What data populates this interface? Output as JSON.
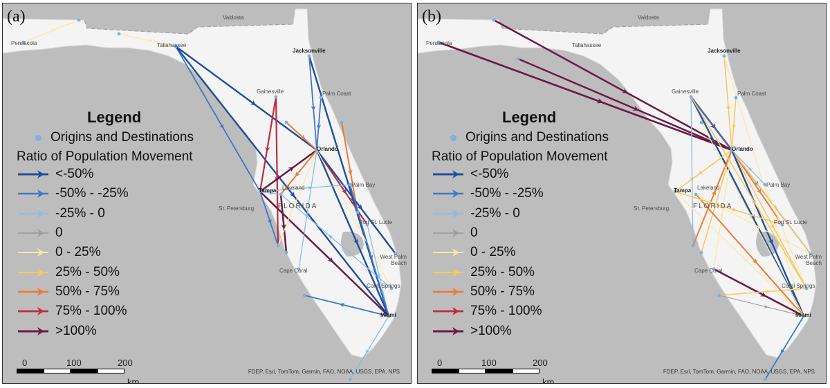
{
  "panels": [
    {
      "label": "(a)",
      "flows": [
        {
          "from": "Pensacola",
          "to": "ne_pan",
          "cls": 5
        },
        {
          "from": "west_pan",
          "to": "Tallahassee",
          "cls": 5
        },
        {
          "from": "Tallahassee",
          "to": "Orlando",
          "cls": 1
        },
        {
          "from": "Tallahassee",
          "to": "Tampa",
          "cls": 2
        },
        {
          "from": "Tallahassee",
          "to": "Miami",
          "cls": 1
        },
        {
          "from": "Jacksonville",
          "to": "Miami",
          "cls": 1
        },
        {
          "from": "Jacksonville",
          "to": "Orlando",
          "cls": 2
        },
        {
          "from": "Palm Coast",
          "to": "Orlando",
          "cls": 2
        },
        {
          "from": "east_coast",
          "to": "Fort Pierce",
          "cls": 7
        },
        {
          "from": "Gainesville",
          "to": "Sarasota",
          "cls": 8
        },
        {
          "from": "Gainesville",
          "to": "Tampa",
          "cls": 8
        },
        {
          "from": "Tampa",
          "to": "Orlando",
          "cls": 9
        },
        {
          "from": "Tampa",
          "to": "Miami",
          "cls": 9
        },
        {
          "from": "Lakeland",
          "to": "Fort Myers",
          "cls": 9
        },
        {
          "from": "Orlando",
          "to": "Port St Lucie",
          "cls": 8
        },
        {
          "from": "Orlando",
          "to": "Miami",
          "cls": 1
        },
        {
          "from": "Orlando",
          "to": "West Palm",
          "cls": 1
        },
        {
          "from": "Orlando",
          "to": "Cape Coral",
          "cls": 3
        },
        {
          "from": "Orlando",
          "to": "Sarasota",
          "cls": 5
        },
        {
          "from": "Orlando",
          "to": "Coral Springs",
          "cls": 5
        },
        {
          "from": "Tampa",
          "to": "Sarasota",
          "cls": 2
        },
        {
          "from": "Tampa",
          "to": "Lakeland",
          "cls": 3
        },
        {
          "from": "Miami",
          "to": "Key West",
          "cls": 3
        },
        {
          "from": "Miami",
          "to": "Naples",
          "cls": 2
        },
        {
          "from": "Ocala",
          "to": "Orlando",
          "cls": 7
        },
        {
          "from": "Tampa",
          "to": "Palm Bay",
          "cls": 3
        },
        {
          "from": "Coral Springs",
          "to": "Lakeland",
          "cls": 3
        },
        {
          "from": "Orlando",
          "to": "Lakeland",
          "cls": 7
        },
        {
          "from": "Port St Lucie",
          "to": "Miami",
          "cls": 3
        },
        {
          "from": "Palm Bay",
          "to": "Miami",
          "cls": 2
        }
      ]
    },
    {
      "label": "(b)",
      "flows": [
        {
          "from": "ne_pan",
          "to": "Orlando",
          "cls": 9
        },
        {
          "from": "Pensacola",
          "to": "Orlando",
          "cls": 9
        },
        {
          "from": "Pensacola",
          "to": "Orlando",
          "cls": 9
        },
        {
          "from": "pan_mid",
          "to": "Orlando",
          "cls": 9
        },
        {
          "from": "Gainesville",
          "to": "Orlando",
          "cls": 9
        },
        {
          "from": "Gainesville",
          "to": "Miami",
          "cls": 1
        },
        {
          "from": "Gainesville",
          "to": "West Palm",
          "cls": 2
        },
        {
          "from": "Gainesville",
          "to": "Sarasota",
          "cls": 3
        },
        {
          "from": "Jacksonville",
          "to": "Orlando",
          "cls": 6
        },
        {
          "from": "Jacksonville",
          "to": "Miami",
          "cls": 5
        },
        {
          "from": "Palm Coast",
          "to": "Orlando",
          "cls": 6
        },
        {
          "from": "Orlando",
          "to": "Tampa",
          "cls": 6
        },
        {
          "from": "Orlando",
          "to": "Sarasota",
          "cls": 6
        },
        {
          "from": "Orlando",
          "to": "Fort Myers",
          "cls": 6
        },
        {
          "from": "Orlando",
          "to": "Cape Coral",
          "cls": 5
        },
        {
          "from": "Orlando",
          "to": "Port St Lucie",
          "cls": 7
        },
        {
          "from": "Orlando",
          "to": "West Palm",
          "cls": 6
        },
        {
          "from": "Orlando",
          "to": "Coral Springs",
          "cls": 6
        },
        {
          "from": "Orlando",
          "to": "Miami",
          "cls": 1
        },
        {
          "from": "Orlando",
          "to": "Palm Bay",
          "cls": 3
        },
        {
          "from": "Cape Coral",
          "to": "Miami",
          "cls": 9
        },
        {
          "from": "Naples",
          "to": "Miami",
          "cls": 4
        },
        {
          "from": "Naples",
          "to": "Coral Springs",
          "cls": 6
        },
        {
          "from": "Miami",
          "to": "Key West",
          "cls": 2
        },
        {
          "from": "Lakeland",
          "to": "Miami",
          "cls": 7
        },
        {
          "from": "Tampa",
          "to": "Port St Lucie",
          "cls": 6
        },
        {
          "from": "Tampa",
          "to": "Miami",
          "cls": 5
        },
        {
          "from": "Sarasota",
          "to": "Orlando",
          "cls": 7
        },
        {
          "from": "Ocala",
          "to": "Miami",
          "cls": 5
        },
        {
          "from": "Gainesville",
          "to": "Coral Springs",
          "cls": 6
        },
        {
          "from": "Palm Bay",
          "to": "Coral Springs",
          "cls": 5
        },
        {
          "from": "Lakeland",
          "to": "West Palm",
          "cls": 5
        }
      ]
    }
  ],
  "cities": [
    {
      "name": "Pensacola",
      "key": "Pensacola",
      "bold": false
    },
    {
      "name": "Tallahassee",
      "key": "Tallahassee",
      "bold": false
    },
    {
      "name": "Valdosta",
      "key": "Valdosta",
      "bold": false
    },
    {
      "name": "Jacksonville",
      "key": "Jacksonville",
      "bold": true
    },
    {
      "name": "Gainesville",
      "key": "Gainesville",
      "bold": false
    },
    {
      "name": "Palm Coast",
      "key": "Palm Coast",
      "bold": false
    },
    {
      "name": "Orlando",
      "key": "Orlando",
      "bold": true
    },
    {
      "name": "Tampa",
      "key": "Tampa",
      "bold": true
    },
    {
      "name": "Lakeland",
      "key": "Lakeland",
      "bold": false
    },
    {
      "name": "St. Petersburg",
      "key": "St Petersburg",
      "bold": false
    },
    {
      "name": "FLORIDA",
      "key": "FLORIDA",
      "bold": false
    },
    {
      "name": "Palm Bay",
      "key": "Palm Bay",
      "bold": false
    },
    {
      "name": "Port St. Lucie",
      "key": "Port St Lucie",
      "bold": false
    },
    {
      "name": "West Palm Beach",
      "key": "West Palm",
      "bold": false
    },
    {
      "name": "Cape Coral",
      "key": "Cape Coral",
      "bold": false
    },
    {
      "name": "Coral Springs",
      "key": "Coral Springs",
      "bold": false
    },
    {
      "name": "Miami",
      "key": "Miami",
      "bold": true
    }
  ],
  "legend": {
    "title": "Legend",
    "od_label": "Origins and Destinations",
    "subtitle": "Ratio of Population Movement",
    "classes": [
      {
        "label": "<-50%",
        "color": "#1f4e9e"
      },
      {
        "label": "-50% - -25%",
        "color": "#3a78c8"
      },
      {
        "label": "-25% - 0",
        "color": "#8bbbe6"
      },
      {
        "label": "0",
        "color": "#9e9e9e"
      },
      {
        "label": "0 - 25%",
        "color": "#fbe8a6"
      },
      {
        "label": "25% - 50%",
        "color": "#f9c85e"
      },
      {
        "label": "50% - 75%",
        "color": "#ee7a33"
      },
      {
        "label": "75% - 100%",
        "color": "#be2c3e"
      },
      {
        "label": ">100%",
        "color": "#6a1a45"
      }
    ]
  },
  "scale": {
    "n0": "0",
    "n1": "100",
    "n2": "200",
    "unit": "km"
  },
  "credits": "FDEP, Esri, TomTom, Garmin, FAO, NOAA, USGS, EPA, NPS",
  "colors": {
    "water": "#bdbdbd",
    "land": "#f4f4f4",
    "boundary": "#9a9a9a",
    "od_point": "#7fb0e0"
  }
}
